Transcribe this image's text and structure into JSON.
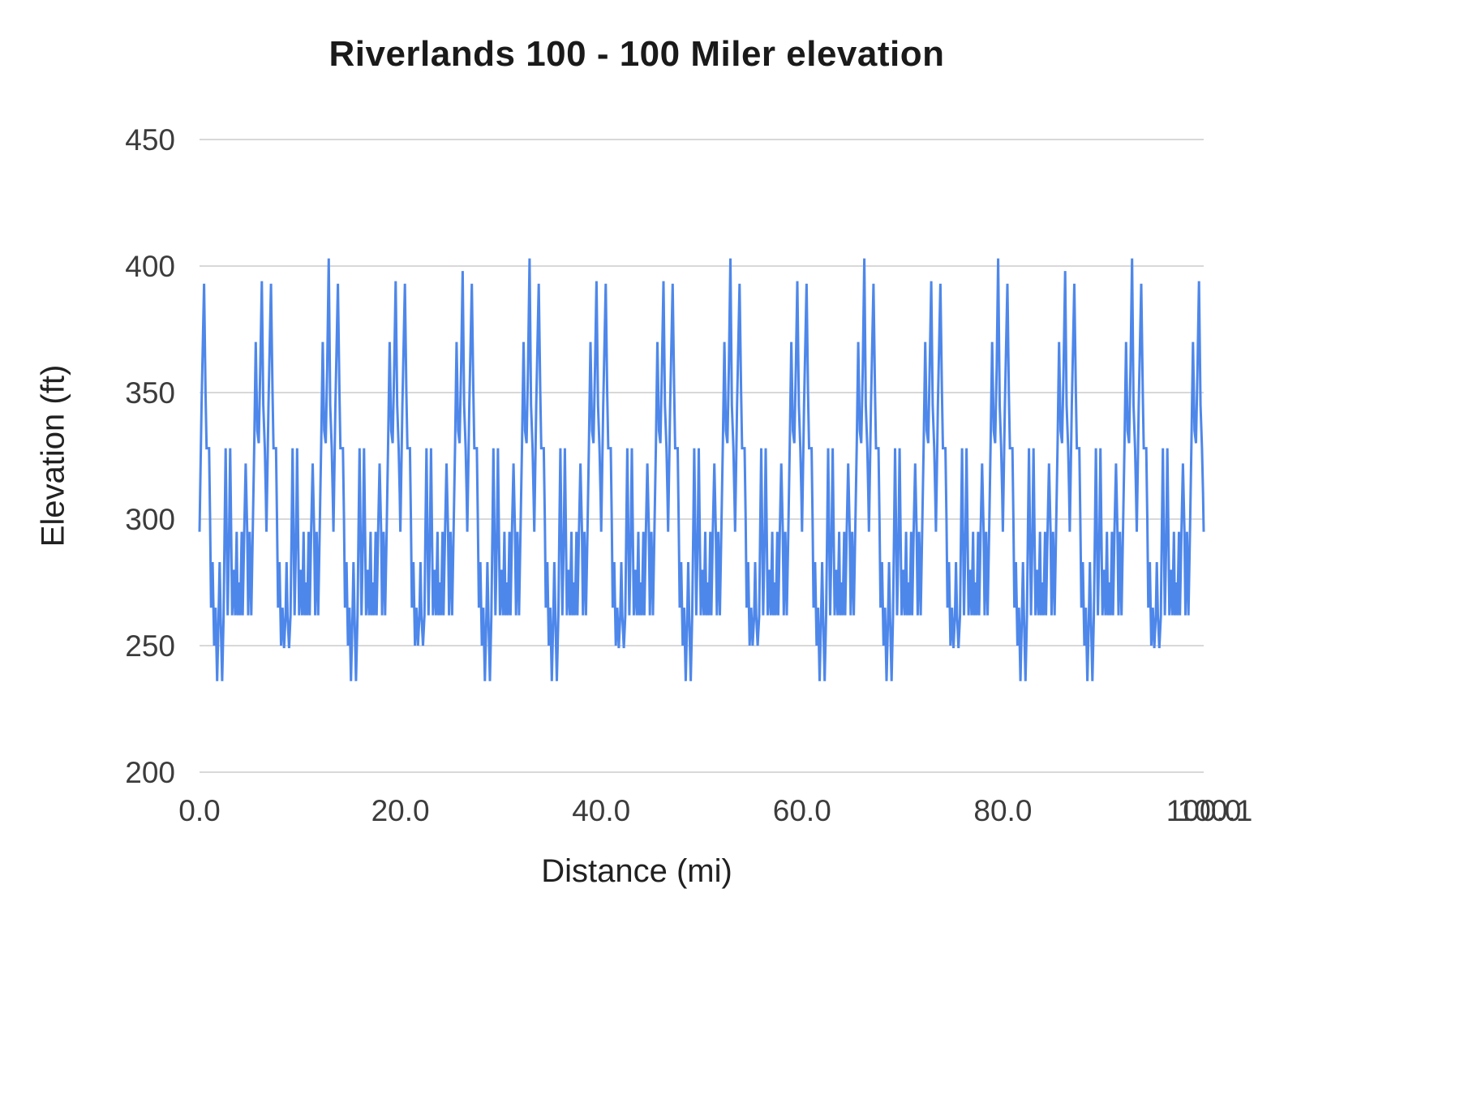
{
  "chart_data": {
    "type": "line",
    "title": "Riverlands 100 - 100 Miler elevation",
    "xlabel": "Distance (mi)",
    "ylabel": "Elevation (ft)",
    "xlim": [
      0,
      100
    ],
    "ylim": [
      200,
      450
    ],
    "y_ticks": [
      200,
      250,
      300,
      350,
      400,
      450
    ],
    "y_tick_labels": [
      "200",
      "250",
      "300",
      "350",
      "400",
      "450"
    ],
    "x_ticks": [
      0,
      20,
      40,
      60,
      80,
      100
    ],
    "x_tick_labels": [
      "0.0",
      "20.0",
      "40.0",
      "60.0",
      "80.0",
      "100.0"
    ],
    "x_axis_overlap_label": "100.1",
    "grid": "horizontal",
    "legend": "none",
    "colors": {
      "line": "#4e87ea",
      "gridline": "#d8d8d8",
      "tick_text": "#3c3c3c",
      "title_text": "#1a1a1a",
      "background": "#ffffff"
    },
    "series": [
      {
        "name": "Elevation",
        "structure": "Elevation profile of a ~6.67-mile lap repeated 15 times (100 miles total); elevations oscillate between ~236 ft and ~403 ft",
        "laps": 15,
        "min_elevation": 236,
        "max_elevation": 403,
        "lap_profile": [
          [
            0.0,
            295
          ],
          [
            0.2,
            345
          ],
          [
            0.45,
            393
          ],
          [
            0.6,
            350
          ],
          [
            0.7,
            328
          ],
          [
            0.95,
            328
          ],
          [
            1.05,
            300
          ],
          [
            1.15,
            265
          ],
          [
            1.3,
            283
          ],
          [
            1.45,
            250
          ],
          [
            1.6,
            265
          ],
          [
            1.75,
            236,
            "dip"
          ],
          [
            1.9,
            262
          ],
          [
            2.0,
            283
          ],
          [
            2.1,
            262
          ],
          [
            2.25,
            236,
            "dip"
          ],
          [
            2.4,
            262
          ],
          [
            2.5,
            295
          ],
          [
            2.6,
            328
          ],
          [
            2.7,
            295
          ],
          [
            2.8,
            262
          ],
          [
            2.95,
            295
          ],
          [
            3.05,
            328
          ],
          [
            3.15,
            295
          ],
          [
            3.25,
            262
          ],
          [
            3.4,
            280
          ],
          [
            3.55,
            262
          ],
          [
            3.7,
            295
          ],
          [
            3.8,
            262
          ],
          [
            3.95,
            275
          ],
          [
            4.05,
            262
          ],
          [
            4.2,
            295
          ],
          [
            4.3,
            262
          ],
          [
            4.45,
            295
          ],
          [
            4.6,
            322
          ],
          [
            4.75,
            295
          ],
          [
            4.85,
            262
          ],
          [
            5.0,
            295
          ],
          [
            5.15,
            262
          ],
          [
            5.3,
            295
          ],
          [
            5.45,
            330
          ],
          [
            5.6,
            370
          ],
          [
            5.75,
            335
          ],
          [
            5.9,
            330
          ],
          [
            6.05,
            360
          ],
          [
            6.2,
            398,
            "peak"
          ],
          [
            6.35,
            345
          ],
          [
            6.5,
            328
          ],
          [
            6.6,
            310
          ]
        ],
        "peak_elevation_by_lap": [
          394,
          403,
          394,
          398,
          403,
          394,
          394,
          403,
          394,
          403,
          394,
          403,
          398,
          403,
          394
        ],
        "dip_elevation_by_lap": [
          236,
          249,
          236,
          250,
          236,
          236,
          249,
          236,
          250,
          236,
          236,
          249,
          236,
          236,
          249
        ],
        "end_point": [
          100.0,
          295
        ]
      }
    ]
  }
}
